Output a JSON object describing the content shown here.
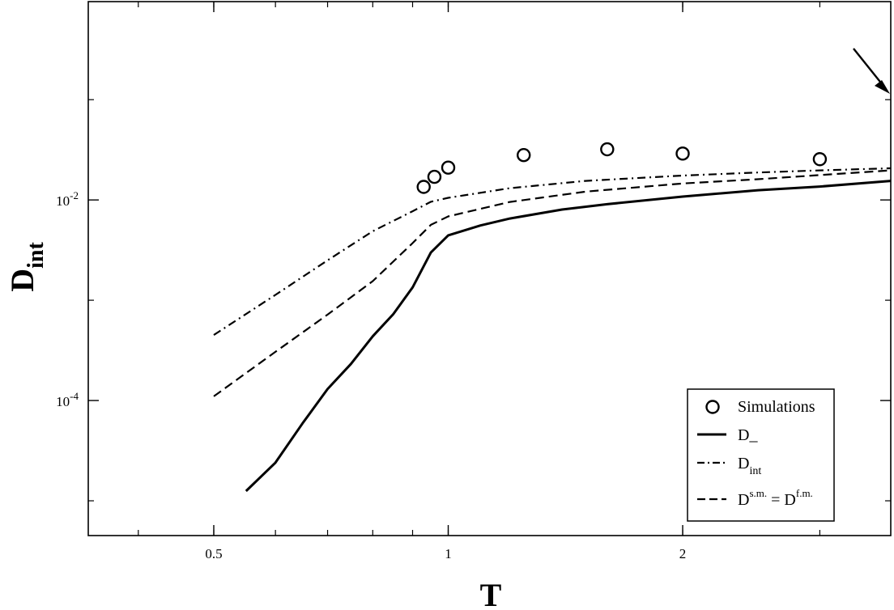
{
  "chart_data": {
    "type": "line",
    "xlabel": "T",
    "ylabel": {
      "main": "D",
      "sub": "int"
    },
    "x_scale": "log",
    "y_scale": "log",
    "xlim": [
      0.345,
      3.7
    ],
    "ylim": [
      4.5e-06,
      0.95
    ],
    "x_ticks": [
      {
        "value": 0.5,
        "label": "0.5"
      },
      {
        "value": 1,
        "label": "1"
      },
      {
        "value": 2,
        "label": "2"
      }
    ],
    "y_ticks": [
      {
        "value": 0.01,
        "base": "10",
        "exp": "-2"
      },
      {
        "value": 0.0001,
        "base": "10",
        "exp": "-4"
      }
    ],
    "grid": false,
    "legend_position": "bottom-right",
    "series": [
      {
        "name": "Simulations",
        "kind": "markers",
        "marker": "open-circle",
        "points": [
          [
            0.93,
            0.0135
          ],
          [
            0.96,
            0.017
          ],
          [
            1.0,
            0.021
          ],
          [
            1.25,
            0.028
          ],
          [
            1.6,
            0.032
          ],
          [
            2.0,
            0.029
          ],
          [
            3.0,
            0.0255
          ]
        ]
      },
      {
        "name": "D_",
        "kind": "line",
        "dash": "solid",
        "points": [
          [
            0.55,
            1.25e-05
          ],
          [
            0.6,
            2.4e-05
          ],
          [
            0.65,
            5.92e-05
          ],
          [
            0.7,
            0.00013
          ],
          [
            0.75,
            0.000232
          ],
          [
            0.8,
            0.000437
          ],
          [
            0.85,
            0.000725
          ],
          [
            0.9,
            0.00134
          ],
          [
            0.95,
            0.00299
          ],
          [
            1.0,
            0.00444
          ],
          [
            1.1,
            0.00557
          ],
          [
            1.2,
            0.00653
          ],
          [
            1.4,
            0.00803
          ],
          [
            1.6,
            0.00907
          ],
          [
            2.0,
            0.0108
          ],
          [
            2.5,
            0.0125
          ],
          [
            3.0,
            0.0136
          ],
          [
            3.7,
            0.0155
          ]
        ]
      },
      {
        "name": "D",
        "name_sub": "int",
        "kind": "line",
        "dash": "dashdot",
        "points": [
          [
            0.5,
            0.00045
          ],
          [
            0.6,
            0.00113
          ],
          [
            0.7,
            0.0025
          ],
          [
            0.8,
            0.00488
          ],
          [
            0.9,
            0.00772
          ],
          [
            0.95,
            0.00959
          ],
          [
            1.0,
            0.0105
          ],
          [
            1.2,
            0.0131
          ],
          [
            1.5,
            0.0155
          ],
          [
            2.0,
            0.0175
          ],
          [
            2.5,
            0.0188
          ],
          [
            3.0,
            0.0197
          ],
          [
            3.7,
            0.0207
          ]
        ]
      },
      {
        "name": "D",
        "name_sup": "s.m.",
        "name_mid": " = D",
        "name_sup2": "f.m.",
        "kind": "line",
        "dash": "dashed",
        "points": [
          [
            0.5,
            0.00011
          ],
          [
            0.6,
            0.000306
          ],
          [
            0.7,
            0.000718
          ],
          [
            0.8,
            0.00155
          ],
          [
            0.9,
            0.00371
          ],
          [
            0.95,
            0.00565
          ],
          [
            1.0,
            0.00685
          ],
          [
            1.2,
            0.00956
          ],
          [
            1.5,
            0.0121
          ],
          [
            2.0,
            0.0146
          ],
          [
            2.5,
            0.0161
          ],
          [
            3.0,
            0.0177
          ],
          [
            3.7,
            0.0197
          ]
        ]
      }
    ]
  }
}
